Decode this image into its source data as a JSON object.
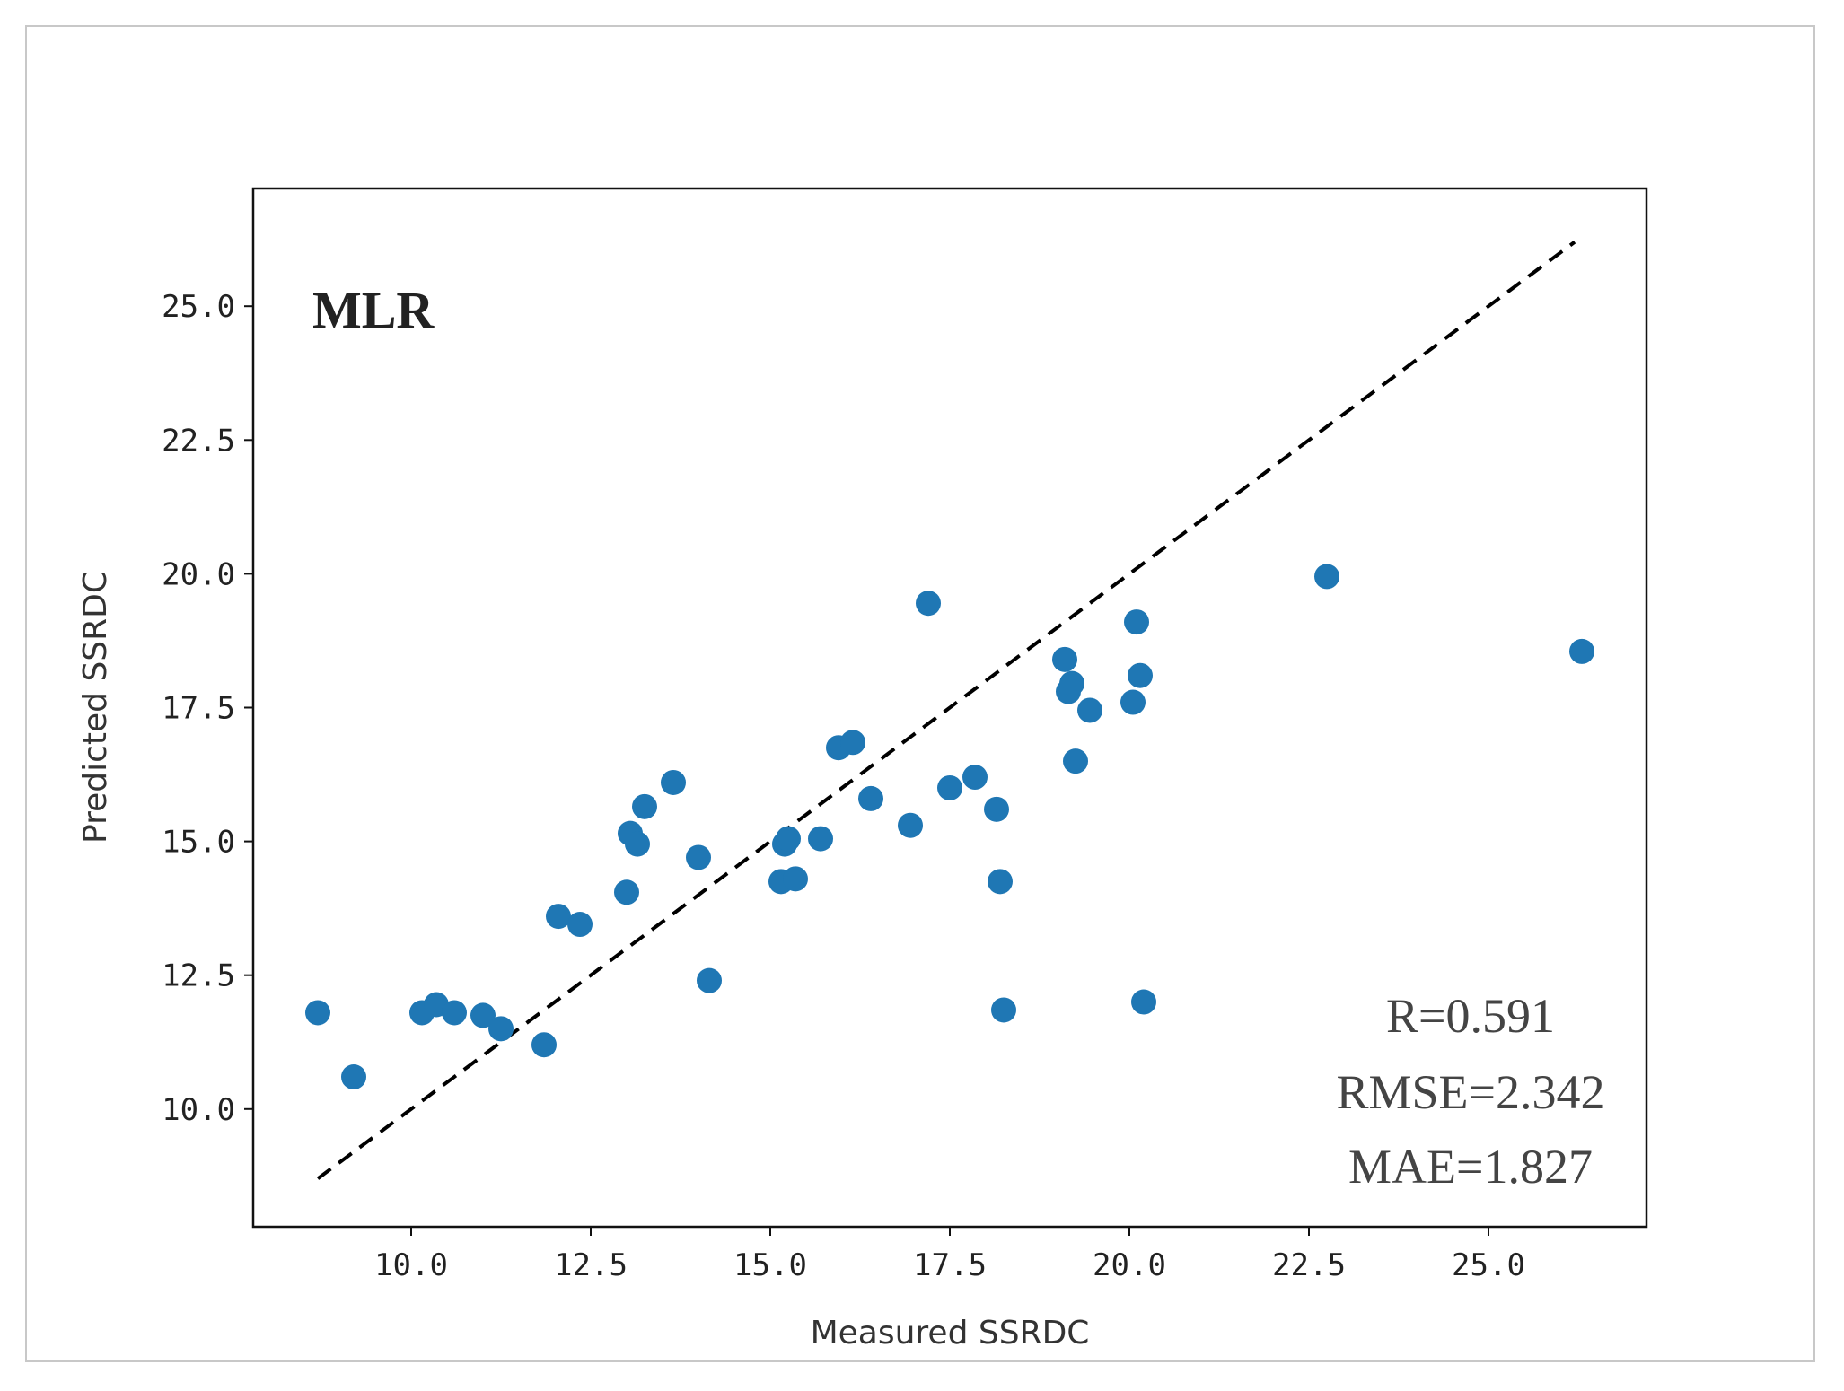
{
  "chart_data": {
    "type": "scatter",
    "model_label": "MLR",
    "xlabel": "Measured SSRDC",
    "ylabel": "Predicted SSRDC",
    "xlim": [
      7.8,
      27.2
    ],
    "ylim": [
      7.8,
      27.2
    ],
    "xticks": [
      10.0,
      12.5,
      15.0,
      17.5,
      20.0,
      22.5,
      25.0
    ],
    "yticks": [
      10.0,
      12.5,
      15.0,
      17.5,
      20.0,
      22.5,
      25.0
    ],
    "xtick_labels": [
      "10.0",
      "12.5",
      "15.0",
      "17.5",
      "20.0",
      "22.5",
      "25.0"
    ],
    "ytick_labels": [
      "10.0",
      "12.5",
      "15.0",
      "17.5",
      "20.0",
      "22.5",
      "25.0"
    ],
    "metrics": [
      "R=0.591",
      "RMSE=2.342",
      "MAE=1.827"
    ],
    "reference_line": {
      "x": [
        8.7,
        26.2
      ],
      "y": [
        8.7,
        26.2
      ],
      "style": "dashed",
      "color": "#000000"
    },
    "point_color": "#1f77b4",
    "points": [
      {
        "x": 8.7,
        "y": 11.8
      },
      {
        "x": 9.2,
        "y": 10.6
      },
      {
        "x": 10.15,
        "y": 11.8
      },
      {
        "x": 10.35,
        "y": 11.95
      },
      {
        "x": 10.6,
        "y": 11.8
      },
      {
        "x": 11.0,
        "y": 11.75
      },
      {
        "x": 11.25,
        "y": 11.5
      },
      {
        "x": 11.85,
        "y": 11.2
      },
      {
        "x": 12.05,
        "y": 13.6
      },
      {
        "x": 12.35,
        "y": 13.45
      },
      {
        "x": 13.0,
        "y": 14.05
      },
      {
        "x": 13.05,
        "y": 15.15
      },
      {
        "x": 13.15,
        "y": 14.95
      },
      {
        "x": 13.25,
        "y": 15.65
      },
      {
        "x": 13.65,
        "y": 16.1
      },
      {
        "x": 14.0,
        "y": 14.7
      },
      {
        "x": 14.15,
        "y": 12.4
      },
      {
        "x": 15.15,
        "y": 14.25
      },
      {
        "x": 15.2,
        "y": 14.95
      },
      {
        "x": 15.25,
        "y": 15.05
      },
      {
        "x": 15.35,
        "y": 14.3
      },
      {
        "x": 15.7,
        "y": 15.05
      },
      {
        "x": 15.95,
        "y": 16.75
      },
      {
        "x": 16.15,
        "y": 16.85
      },
      {
        "x": 16.4,
        "y": 15.8
      },
      {
        "x": 16.95,
        "y": 15.3
      },
      {
        "x": 17.2,
        "y": 19.45
      },
      {
        "x": 17.5,
        "y": 16.0
      },
      {
        "x": 17.85,
        "y": 16.2
      },
      {
        "x": 18.15,
        "y": 15.6
      },
      {
        "x": 18.2,
        "y": 14.25
      },
      {
        "x": 18.25,
        "y": 11.85
      },
      {
        "x": 19.1,
        "y": 18.4
      },
      {
        "x": 19.15,
        "y": 17.8
      },
      {
        "x": 19.2,
        "y": 17.95
      },
      {
        "x": 19.25,
        "y": 16.5
      },
      {
        "x": 19.45,
        "y": 17.45
      },
      {
        "x": 20.05,
        "y": 17.6
      },
      {
        "x": 20.1,
        "y": 19.1
      },
      {
        "x": 20.15,
        "y": 18.1
      },
      {
        "x": 20.2,
        "y": 12.0
      },
      {
        "x": 22.75,
        "y": 19.95
      },
      {
        "x": 26.3,
        "y": 18.55
      }
    ]
  }
}
